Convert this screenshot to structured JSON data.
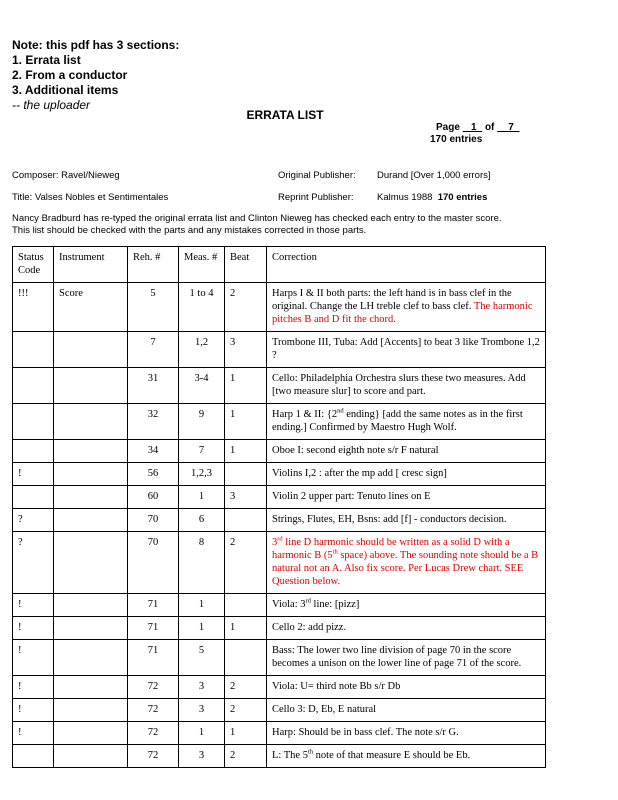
{
  "note": {
    "lines": [
      "Note: this pdf has 3 sections:",
      "1. Errata list",
      "2. From a conductor",
      "3. Additional items"
    ],
    "signature": "-- the uploader"
  },
  "title": "ERRATA LIST",
  "page_info": {
    "page_label": "Page",
    "page": "1",
    "of_label": "of",
    "total": "7",
    "entries": "170 entries"
  },
  "meta": {
    "composer": "Composer: Ravel/Nieweg",
    "title": "Title: Valses Nobles et Sentimentales",
    "original_publisher_label": "Original Publisher:",
    "original_publisher": "Durand [Over 1,000 errors]",
    "reprint_publisher_label": "Reprint Publisher:",
    "reprint_publisher": "Kalmus 1988",
    "reprint_entries": "170 entries"
  },
  "intro": [
    "Nancy Bradburd has re-typed the original errata list and Clinton Nieweg has checked each entry to the master score.",
    "This list should be checked with the parts and any mistakes corrected in those parts."
  ],
  "table": {
    "headers": {
      "status": "Status Code",
      "instrument": "Instrument",
      "reh": "Reh. #",
      "meas": "Meas. #",
      "beat": "Beat",
      "correction": "Correction"
    },
    "rows": [
      {
        "status": "!!!",
        "instrument": "Score",
        "reh": "5",
        "meas": "1 to 4",
        "beat": "2",
        "correction": [
          {
            "t": "Harps I & II both parts: the left hand is in bass clef in the original. Change the LH treble clef to bass clef. "
          },
          {
            "t": "The harmonic pitches B and D fit the chord.",
            "red": true
          }
        ]
      },
      {
        "status": "",
        "instrument": "",
        "reh": "7",
        "meas": "1,2",
        "beat": "3",
        "correction": [
          {
            "t": "Trombone III, Tuba: Add [Accents] to beat 3 like Trombone 1,2  ?"
          }
        ]
      },
      {
        "status": "",
        "instrument": "",
        "reh": "31",
        "meas": "3-4",
        "beat": "1",
        "correction": [
          {
            "t": "Cello:  Philadelphia Orchestra slurs these two measures. Add [two measure slur] to score and part."
          }
        ]
      },
      {
        "status": "",
        "instrument": "",
        "reh": "32",
        "meas": "9",
        "beat": "1",
        "correction": [
          {
            "t": "Harp 1 & II: {2"
          },
          {
            "t": "nd",
            "sup": true
          },
          {
            "t": " ending}  [add the same notes as in the first ending.] Confirmed by Maestro Hugh Wolf."
          }
        ]
      },
      {
        "status": "",
        "instrument": "",
        "reh": "34",
        "meas": "7",
        "beat": "1",
        "correction": [
          {
            "t": "Oboe I:  second eighth note s/r F natural"
          }
        ]
      },
      {
        "status": "!",
        "instrument": "",
        "reh": "56",
        "meas": "1,2,3",
        "beat": "",
        "correction": [
          {
            "t": "Violins I,2 : after the mp add [ cresc sign]"
          }
        ]
      },
      {
        "status": "",
        "instrument": "",
        "reh": "60",
        "meas": "1",
        "beat": "3",
        "correction": [
          {
            "t": "Violin 2 upper part: Tenuto lines on E"
          }
        ]
      },
      {
        "status": "?",
        "instrument": "",
        "reh": "70",
        "meas": "6",
        "beat": "",
        "correction": [
          {
            "t": "Strings, Flutes, EH, Bsns: add  [f] - conductors decision."
          }
        ]
      },
      {
        "status": "?",
        "instrument": "",
        "reh": "70",
        "meas": "8",
        "beat": "2",
        "correction": [
          {
            "t": "3",
            "red": true
          },
          {
            "t": "rd",
            "sup": true,
            "red": true
          },
          {
            "t": " line D harmonic should be written as a solid D with a harmonic B (5",
            "red": true
          },
          {
            "t": "th",
            "sup": true,
            "red": true
          },
          {
            "t": " space) above.   The sounding note should be a B natural not an A.  Also fix score. Per Lucas Drew chart.  SEE Question below.",
            "red": true
          }
        ]
      },
      {
        "status": "!",
        "instrument": "",
        "reh": "71",
        "meas": "1",
        "beat": "",
        "correction": [
          {
            "t": "Viola: 3"
          },
          {
            "t": "rd",
            "sup": true
          },
          {
            "t": " line:  [pizz]"
          }
        ]
      },
      {
        "status": "!",
        "instrument": "",
        "reh": "71",
        "meas": "1",
        "beat": "1",
        "correction": [
          {
            "t": "Cello 2: add pizz."
          }
        ]
      },
      {
        "status": "!",
        "instrument": "",
        "reh": "71",
        "meas": "5",
        "beat": "",
        "correction": [
          {
            "t": "Bass: The lower two line division of page 70 in the score becomes a unison on the lower line of page 71 of the score."
          }
        ]
      },
      {
        "status": "!",
        "instrument": "",
        "reh": "72",
        "meas": "3",
        "beat": "2",
        "correction": [
          {
            "t": "Viola:  U=  third note Bb s/r Db"
          }
        ]
      },
      {
        "status": "!",
        "instrument": "",
        "reh": "72",
        "meas": "3",
        "beat": "2",
        "correction": [
          {
            "t": "Cello 3: D, Eb, E natural"
          }
        ]
      },
      {
        "status": "!",
        "instrument": "",
        "reh": "72",
        "meas": "1",
        "beat": "1",
        "correction": [
          {
            "t": "Harp: Should be in bass clef. The note s/r G."
          }
        ]
      },
      {
        "status": "",
        "instrument": "",
        "reh": "72",
        "meas": "3",
        "beat": "2",
        "correction": [
          {
            "t": "L: The 5"
          },
          {
            "t": "th",
            "sup": true
          },
          {
            "t": " note of that measure E should be Eb."
          }
        ]
      }
    ]
  },
  "colors": {
    "red_text": "#e00000"
  }
}
